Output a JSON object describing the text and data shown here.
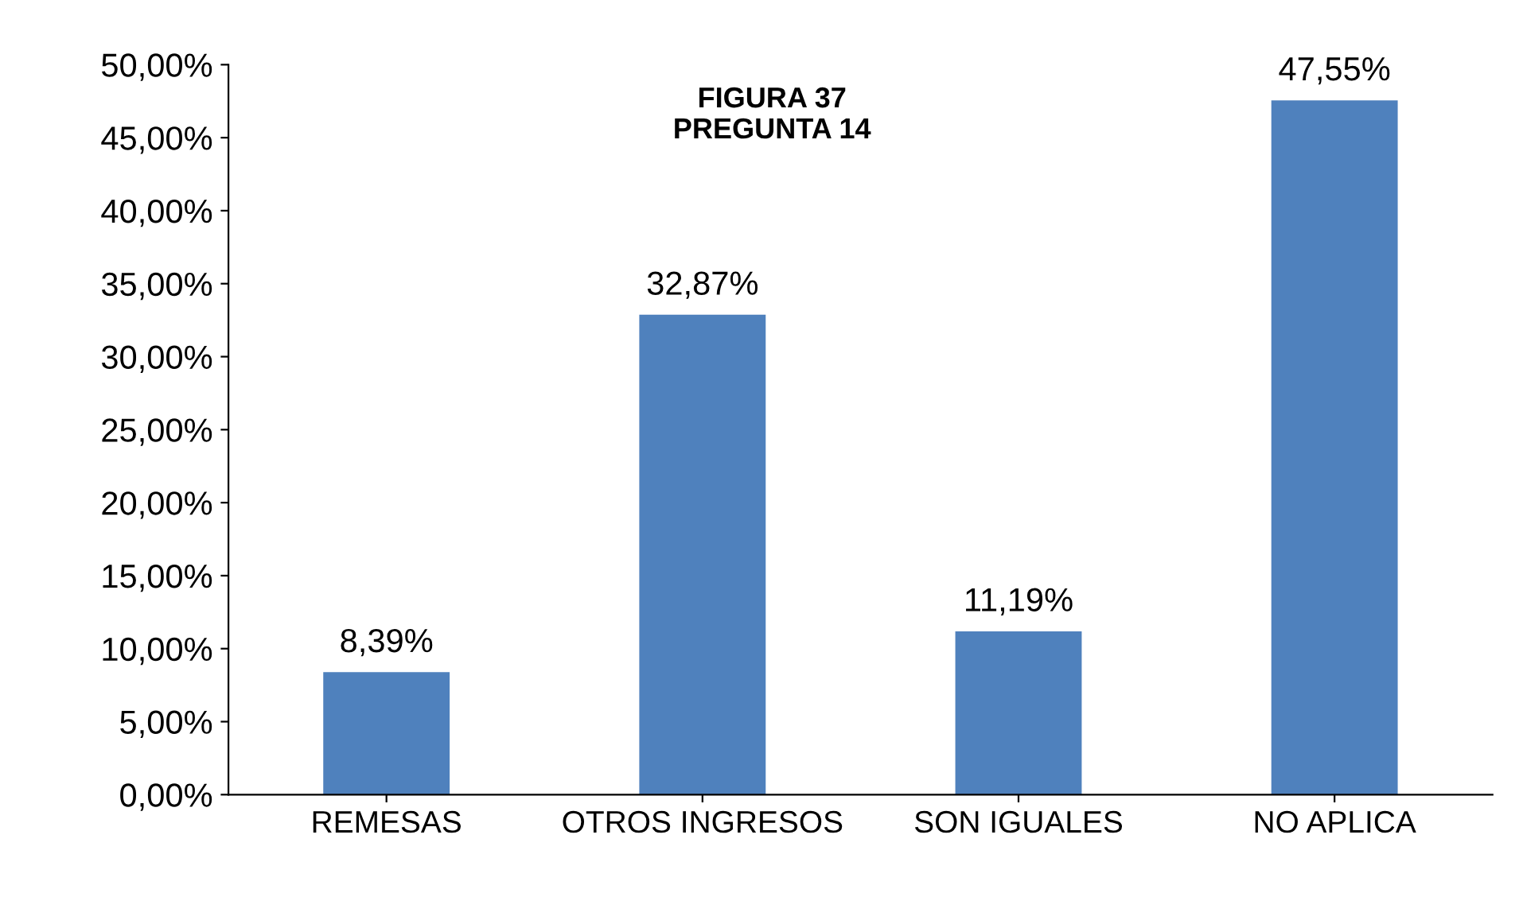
{
  "chart_data": {
    "type": "bar",
    "title": "FIGURA 37\nPREGUNTA 14",
    "categories": [
      "REMESAS",
      "OTROS INGRESOS",
      "SON IGUALES",
      "NO APLICA"
    ],
    "values": [
      8.39,
      32.87,
      11.19,
      47.55
    ],
    "value_labels": [
      "8,39%",
      "32,87%",
      "11,19%",
      "47,55%"
    ],
    "color": "#4f81bd",
    "ylim": [
      0,
      50
    ],
    "yticks": [
      {
        "value": 0,
        "label": "0,00%"
      },
      {
        "value": 5,
        "label": "5,00%"
      },
      {
        "value": 10,
        "label": "10,00%"
      },
      {
        "value": 15,
        "label": "15,00%"
      },
      {
        "value": 20,
        "label": "20,00%"
      },
      {
        "value": 25,
        "label": "25,00%"
      },
      {
        "value": 30,
        "label": "30,00%"
      },
      {
        "value": 35,
        "label": "35,00%"
      },
      {
        "value": 40,
        "label": "40,00%"
      },
      {
        "value": 45,
        "label": "45,00%"
      },
      {
        "value": 50,
        "label": "50,00%"
      }
    ],
    "grid": false,
    "legend": false
  }
}
